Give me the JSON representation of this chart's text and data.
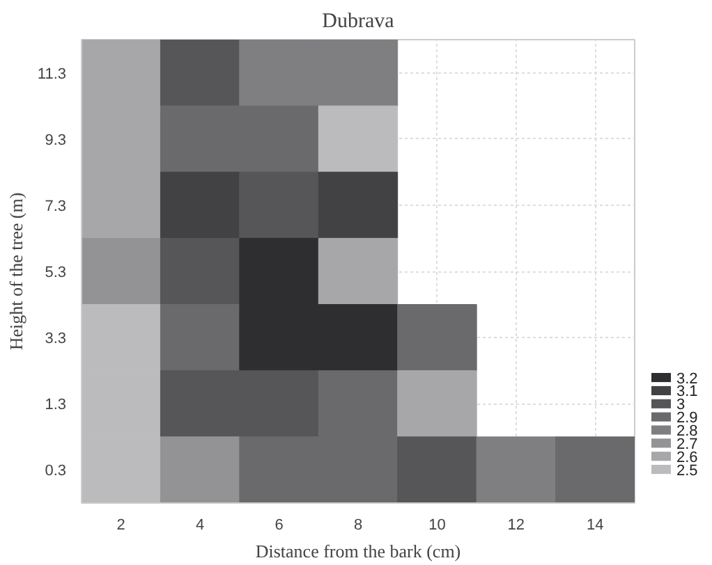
{
  "chart_data": {
    "type": "heatmap",
    "title": "Dubrava",
    "xlabel": "Distance from the bark (cm)",
    "ylabel": "Height of the tree (m)",
    "categories": [
      "2",
      "4",
      "6",
      "8",
      "10",
      "12",
      "14"
    ],
    "y_categories": [
      "11.3",
      "9.3",
      "7.3",
      "5.3",
      "3.3",
      "1.3",
      "0.3"
    ],
    "cells": [
      [
        2.6,
        3.0,
        2.8,
        2.8,
        null,
        null,
        null
      ],
      [
        2.6,
        2.9,
        2.9,
        2.5,
        null,
        null,
        null
      ],
      [
        2.6,
        3.1,
        3.0,
        3.1,
        null,
        null,
        null
      ],
      [
        2.7,
        3.0,
        3.2,
        2.6,
        null,
        null,
        null
      ],
      [
        2.5,
        2.9,
        3.2,
        3.2,
        2.9,
        null,
        null
      ],
      [
        2.5,
        3.0,
        3.0,
        2.9,
        2.6,
        null,
        null
      ],
      [
        2.5,
        2.7,
        2.9,
        2.9,
        3.0,
        2.8,
        2.9
      ]
    ],
    "clim": [
      2.5,
      3.2
    ],
    "cticks": [
      3.2,
      3.1,
      3,
      2.9,
      2.8,
      2.7,
      2.6,
      2.5
    ],
    "grid": true
  }
}
